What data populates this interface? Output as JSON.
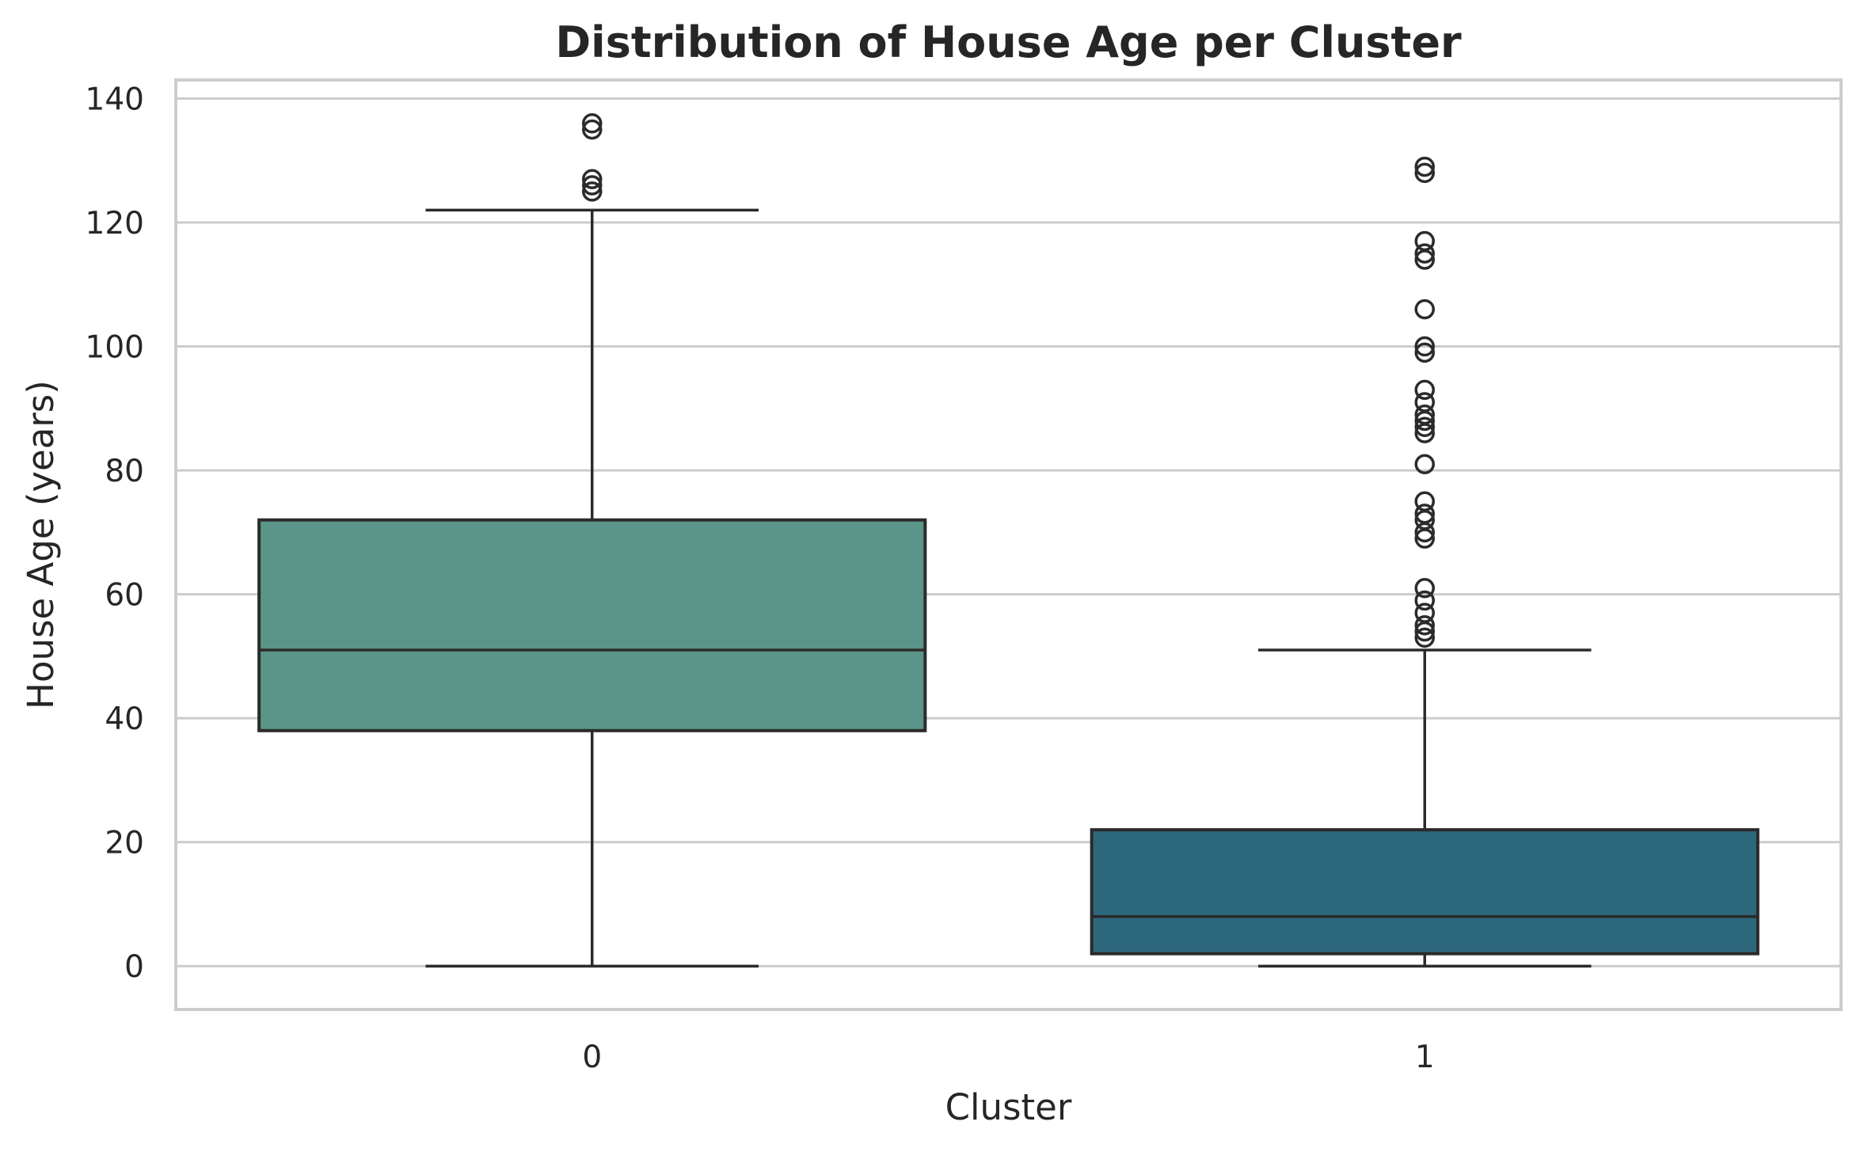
{
  "chart_data": {
    "type": "box",
    "title": "Distribution of House Age per Cluster",
    "xlabel": "Cluster",
    "ylabel": "House Age (years)",
    "ylim": [
      -7,
      143
    ],
    "yticks": [
      0,
      20,
      40,
      60,
      80,
      100,
      120,
      140
    ],
    "grid": true,
    "categories": [
      "0",
      "1"
    ],
    "boxes": [
      {
        "category": "0",
        "whisker_low": 0,
        "q1": 38,
        "median": 51,
        "q3": 72,
        "whisker_high": 122,
        "outliers": [
          125,
          126,
          127,
          135,
          136
        ],
        "color": "#5b9489"
      },
      {
        "category": "1",
        "whisker_low": 0,
        "q1": 2,
        "median": 8,
        "q3": 22,
        "whisker_high": 51,
        "outliers": [
          53,
          54,
          55,
          57,
          59,
          61,
          69,
          70,
          72,
          73,
          75,
          81,
          86,
          87,
          88,
          89,
          91,
          93,
          99,
          100,
          106,
          114,
          115,
          117,
          128,
          129
        ],
        "color": "#2d677c"
      }
    ]
  }
}
